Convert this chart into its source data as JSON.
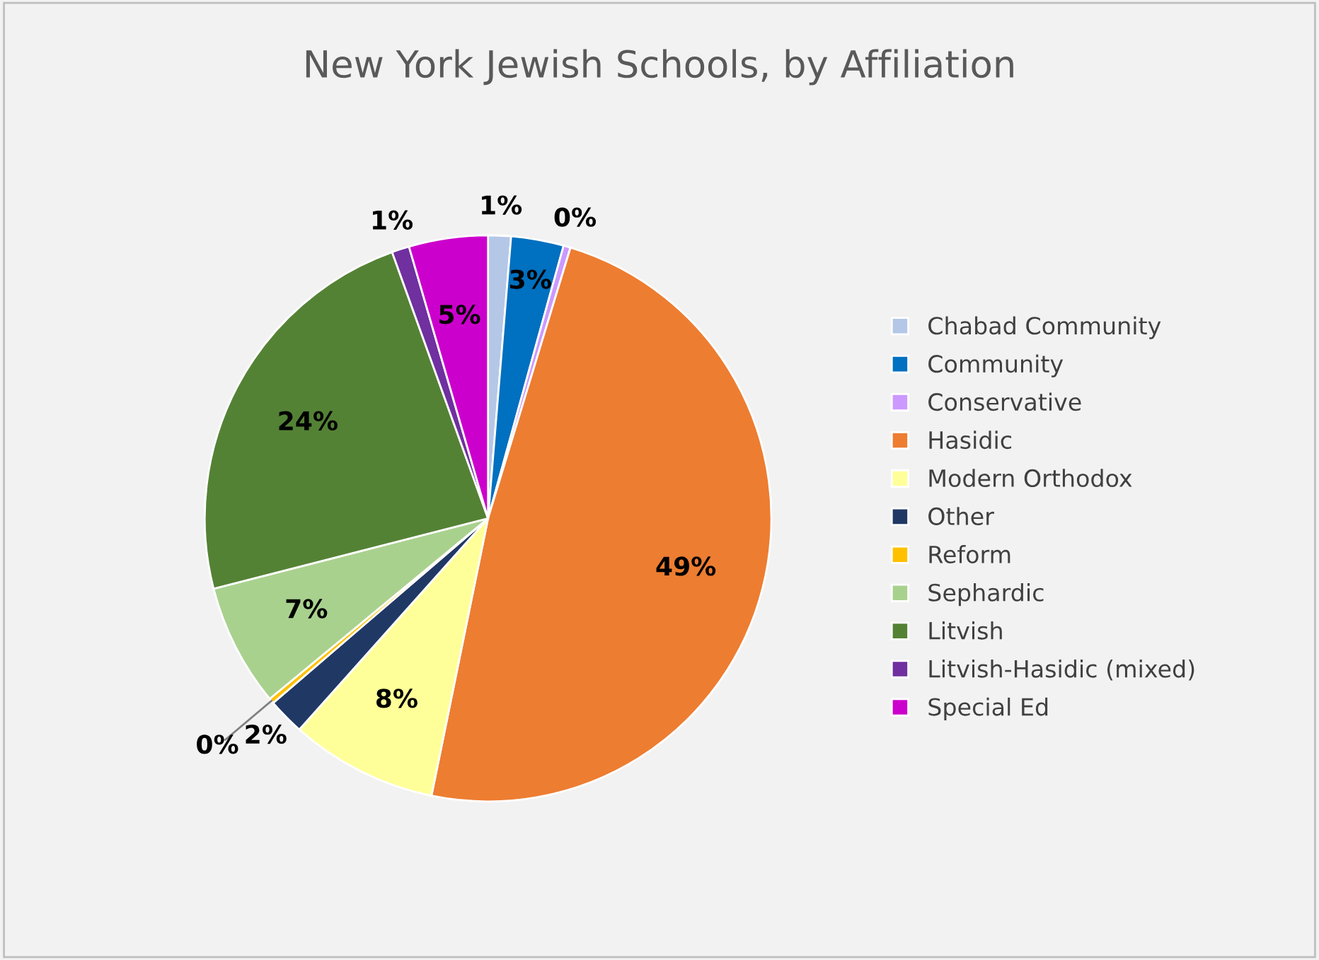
{
  "chart_data": {
    "type": "pie",
    "title": "New York Jewish Schools, by Affiliation",
    "categories": [
      "Chabad Community",
      "Community",
      "Conservative",
      "Hasidic",
      "Modern Orthodox",
      "Other",
      "Reform",
      "Sephardic",
      "Litvish",
      "Litvish-Hasidic (mixed)",
      "Special Ed"
    ],
    "values": [
      1.3,
      3,
      0.4,
      48.5,
      8.4,
      2.1,
      0.3,
      7,
      23.5,
      1,
      4.5
    ],
    "value_labels": [
      "1%",
      "3%",
      "0%",
      "49%",
      "8%",
      "2%",
      "0%",
      "7%",
      "24%",
      "1%",
      "5%"
    ],
    "colors": [
      "#b4c7e7",
      "#0070c0",
      "#cc99ff",
      "#ed7d31",
      "#ffff99",
      "#203864",
      "#ffc000",
      "#a9d18e",
      "#548235",
      "#7030a0",
      "#cc00cc"
    ],
    "legend": "right"
  }
}
